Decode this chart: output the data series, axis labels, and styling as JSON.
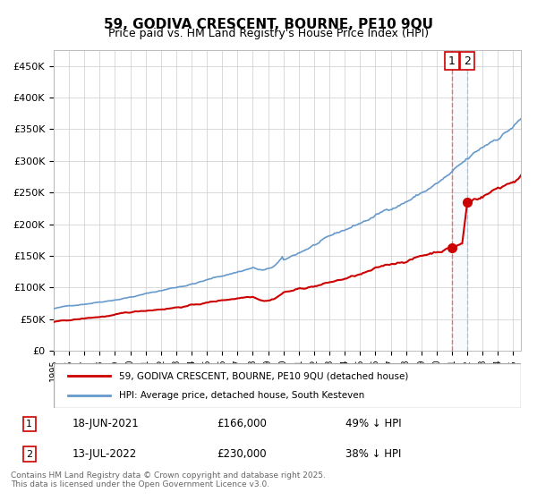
{
  "title": "59, GODIVA CRESCENT, BOURNE, PE10 9QU",
  "subtitle": "Price paid vs. HM Land Registry's House Price Index (HPI)",
  "hpi_label": "HPI: Average price, detached house, South Kesteven",
  "price_label": "59, GODIVA CRESCENT, BOURNE, PE10 9QU (detached house)",
  "footer": "Contains HM Land Registry data © Crown copyright and database right 2025.\nThis data is licensed under the Open Government Licence v3.0.",
  "hpi_color": "#6699cc",
  "price_color": "#cc0000",
  "vline1_color": "#ff6666",
  "vline2_color": "#aabbcc",
  "marker_color": "#cc0000",
  "annotation1": {
    "label": "1",
    "date_idx": 312,
    "price": 166000,
    "text_date": "18-JUN-2021",
    "text_price": "£166,000",
    "text_pct": "49% ↓ HPI"
  },
  "annotation2": {
    "label": "2",
    "date_idx": 324,
    "price": 230000,
    "text_date": "13-JUL-2022",
    "text_price": "£230,000",
    "text_pct": "38% ↓ HPI"
  },
  "ylim": [
    0,
    475000
  ],
  "yticks": [
    0,
    50000,
    100000,
    150000,
    200000,
    250000,
    300000,
    350000,
    400000,
    450000
  ],
  "ytick_labels": [
    "£0",
    "£50K",
    "£100K",
    "£150K",
    "£200K",
    "£250K",
    "£300K",
    "£350K",
    "£400K",
    "£450K"
  ],
  "year_start": 1995,
  "year_end": 2025,
  "background_color": "#ffffff",
  "grid_color": "#cccccc"
}
